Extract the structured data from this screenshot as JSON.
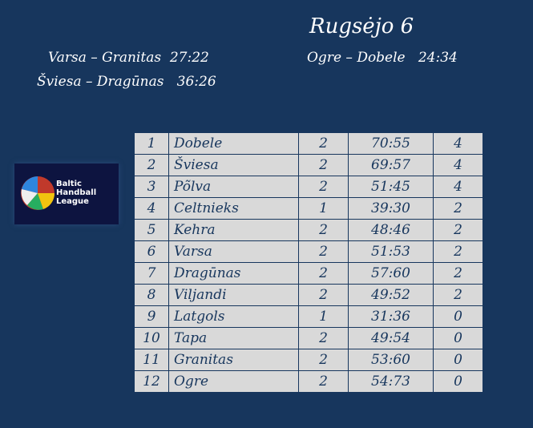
{
  "title": "Rugsėjo 6",
  "results": [
    "Varsa – Granitas  27:22",
    "Šviesa – Dragūnas   36:26",
    "Ogre – Dobele   24:34"
  ],
  "logo": {
    "text": "Baltic Handball League"
  },
  "standings": [
    [
      "1",
      "Dobele",
      "2",
      "70:55",
      "4"
    ],
    [
      "2",
      "Šviesa",
      "2",
      "69:57",
      "4"
    ],
    [
      "3",
      "Põlva",
      "2",
      "51:45",
      "4"
    ],
    [
      "4",
      "Celtnieks",
      "1",
      "39:30",
      "2"
    ],
    [
      "5",
      "Kehra",
      "2",
      "48:46",
      "2"
    ],
    [
      "6",
      "Varsa",
      "2",
      "51:53",
      "2"
    ],
    [
      "7",
      "Dragūnas",
      "2",
      "57:60",
      "2"
    ],
    [
      "8",
      "Viljandi",
      "2",
      "49:52",
      "2"
    ],
    [
      "9",
      "Latgols",
      "1",
      "31:36",
      "0"
    ],
    [
      "10",
      "Tapa",
      "2",
      "49:54",
      "0"
    ],
    [
      "11",
      "Granitas",
      "2",
      "53:60",
      "0"
    ],
    [
      "12",
      "Ogre",
      "2",
      "54:73",
      "0"
    ]
  ],
  "colors": {
    "background": "#17365d",
    "cell": "#d9d9d9"
  }
}
